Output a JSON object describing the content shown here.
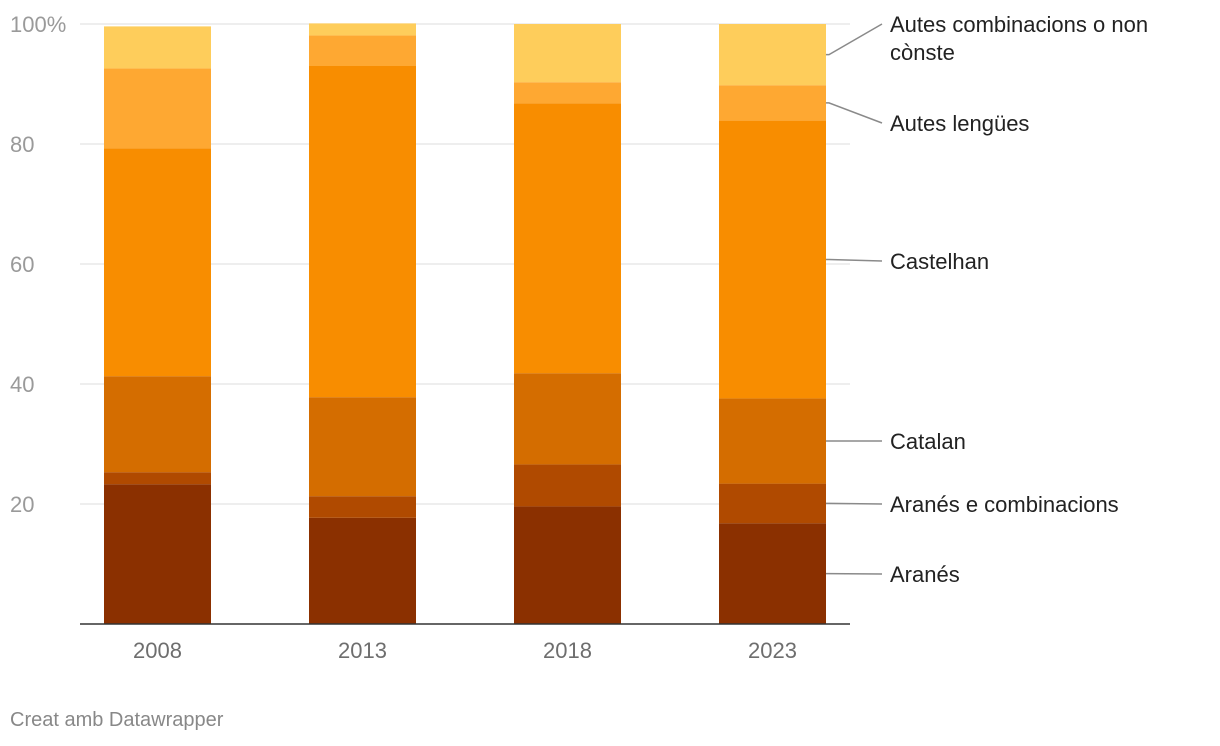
{
  "chart_data": {
    "type": "bar",
    "stacked": true,
    "categories": [
      "2008",
      "2013",
      "2018",
      "2023"
    ],
    "series": [
      {
        "name": "Aranés",
        "color": "#8b3000",
        "values": [
          23.3,
          17.7,
          19.6,
          16.8
        ]
      },
      {
        "name": "Aranés e combinacions",
        "color": "#b04a00",
        "values": [
          2.0,
          3.6,
          7.0,
          6.6
        ]
      },
      {
        "name": "Catalan",
        "color": "#d46d00",
        "values": [
          16.0,
          16.5,
          15.2,
          14.2
        ]
      },
      {
        "name": "Castelhan",
        "color": "#f88d00",
        "values": [
          38.0,
          55.2,
          45.0,
          46.3
        ]
      },
      {
        "name": "Autes lengües",
        "color": "#fea832",
        "values": [
          13.3,
          5.1,
          3.5,
          5.9
        ]
      },
      {
        "name": "Autes combinacions o non cònste",
        "color": "#fecd5b",
        "values": [
          7.0,
          2.0,
          9.7,
          10.2
        ]
      }
    ],
    "legend_lines": [
      [
        "Autes combinacions o non",
        "cònste"
      ],
      [
        "Autes lengües"
      ],
      [
        "Castelhan"
      ],
      [
        "Catalan"
      ],
      [
        "Aranés e combinacions"
      ],
      [
        "Aranés"
      ]
    ],
    "ylim": [
      0,
      100
    ],
    "yticks": [
      20,
      40,
      60,
      80,
      100
    ],
    "ytick_labels": [
      "20",
      "40",
      "60",
      "80",
      "100%"
    ],
    "legend_position": "right",
    "grid": true
  },
  "credit": "Creat amb Datawrapper"
}
